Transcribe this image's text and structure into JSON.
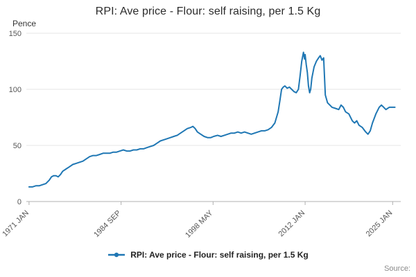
{
  "chart_data": {
    "type": "line",
    "title": "RPI: Ave price - Flour: self raising, per 1.5 Kg",
    "ylabel": "Pence",
    "series_color": "#1f77b4",
    "grid_color": "#e6e6e6",
    "axis_color": "#b0b0b0",
    "tick_label_color": "#555555",
    "ylim": [
      0,
      150
    ],
    "yticks": [
      0,
      50,
      100,
      150
    ],
    "xlim": [
      1970.6,
      2026.2
    ],
    "xticks": [
      {
        "label": "1971 JAN",
        "x": 1971.0
      },
      {
        "label": "1984 SEP",
        "x": 1984.67
      },
      {
        "label": "1998 MAY",
        "x": 1998.33
      },
      {
        "label": "2012 JAN",
        "x": 2012.0
      },
      {
        "label": "2025 JAN",
        "x": 2025.0
      }
    ],
    "legend_position": "bottom",
    "grid": true,
    "series": [
      {
        "name": "RPI: Ave price - Flour: self raising, per 1.5 Kg",
        "x": [
          1971.0,
          1971.5,
          1972.0,
          1972.5,
          1973.0,
          1973.5,
          1974.0,
          1974.33,
          1974.67,
          1975.0,
          1975.33,
          1975.67,
          1976.0,
          1976.5,
          1977.0,
          1977.5,
          1978.0,
          1978.5,
          1979.0,
          1979.5,
          1980.0,
          1980.5,
          1981.0,
          1981.5,
          1982.0,
          1982.5,
          1983.0,
          1983.5,
          1984.0,
          1984.5,
          1985.0,
          1985.5,
          1986.0,
          1986.5,
          1987.0,
          1987.5,
          1988.0,
          1988.5,
          1989.0,
          1989.5,
          1990.0,
          1990.5,
          1991.0,
          1991.5,
          1992.0,
          1992.5,
          1993.0,
          1993.5,
          1994.0,
          1994.5,
          1995.0,
          1995.33,
          1995.67,
          1996.0,
          1996.5,
          1997.0,
          1997.5,
          1998.0,
          1998.42,
          1999.0,
          1999.5,
          2000.0,
          2000.5,
          2001.0,
          2001.5,
          2002.0,
          2002.5,
          2003.0,
          2003.5,
          2004.0,
          2004.5,
          2005.0,
          2005.5,
          2006.0,
          2006.5,
          2007.0,
          2007.5,
          2008.0,
          2008.25,
          2008.5,
          2008.75,
          2009.0,
          2009.33,
          2009.67,
          2010.0,
          2010.33,
          2010.67,
          2011.0,
          2011.25,
          2011.5,
          2011.75,
          2011.92,
          2012.0,
          2012.17,
          2012.33,
          2012.5,
          2012.67,
          2012.83,
          2013.0,
          2013.33,
          2013.67,
          2014.0,
          2014.25,
          2014.5,
          2014.75,
          2015.0,
          2015.33,
          2015.67,
          2016.0,
          2016.5,
          2017.0,
          2017.33,
          2017.67,
          2018.0,
          2018.5,
          2019.0,
          2019.33,
          2019.67,
          2020.0,
          2020.5,
          2021.0,
          2021.33,
          2021.67,
          2022.0,
          2022.5,
          2023.0,
          2023.33,
          2023.67,
          2024.0,
          2024.5,
          2025.0,
          2025.33
        ],
        "values": [
          13,
          13,
          14,
          14,
          15,
          16,
          19,
          22,
          23,
          23,
          22,
          24,
          27,
          29,
          31,
          33,
          34,
          35,
          36,
          38,
          40,
          41,
          41,
          42,
          43,
          43,
          43,
          44,
          44,
          45,
          46,
          45,
          45,
          46,
          46,
          47,
          47,
          48,
          49,
          50,
          52,
          54,
          55,
          56,
          57,
          58,
          59,
          61,
          63,
          65,
          66,
          67,
          65,
          62,
          60,
          58,
          57,
          57,
          58,
          59,
          58,
          59,
          60,
          61,
          61,
          62,
          61,
          62,
          61,
          60,
          61,
          62,
          63,
          63,
          64,
          66,
          70,
          80,
          90,
          100,
          102,
          103,
          101,
          102,
          100,
          98,
          97,
          100,
          112,
          125,
          133,
          127,
          131,
          122,
          115,
          103,
          97,
          100,
          110,
          120,
          125,
          128,
          130,
          126,
          128,
          95,
          88,
          86,
          84,
          83,
          82,
          86,
          84,
          80,
          78,
          72,
          70,
          72,
          68,
          66,
          62,
          60,
          63,
          70,
          78,
          84,
          86,
          84,
          82,
          84,
          84,
          84
        ]
      }
    ]
  },
  "legend": {
    "label": "RPI: Ave price - Flour: self raising, per 1.5 Kg"
  },
  "footer": {
    "source_label": "Source:"
  }
}
